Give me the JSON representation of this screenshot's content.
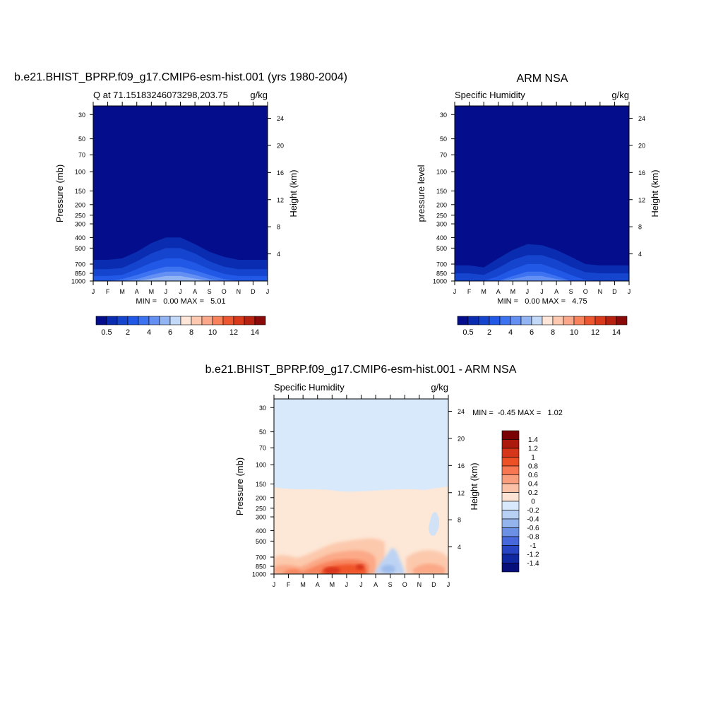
{
  "chart_data": [
    {
      "type": "contour",
      "title": "b.e21.BHIST_BPRP.f09_g17.CMIP6-esm-hist.001 (yrs 1980-2004)",
      "left_string": "Q at 71.15183246073298,203.75",
      "right_string": "g/kg",
      "ylabel": "Pressure (mb)",
      "y2label": "Height (km)",
      "x_ticks": [
        "J",
        "F",
        "M",
        "A",
        "M",
        "J",
        "J",
        "A",
        "S",
        "O",
        "N",
        "D",
        "J"
      ],
      "y_ticks": [
        30,
        50,
        70,
        100,
        150,
        200,
        250,
        300,
        400,
        500,
        700,
        850,
        1000
      ],
      "y2_ticks": [
        24,
        20,
        16,
        12,
        8,
        4
      ],
      "y_log": true,
      "ylim": [
        1000,
        25
      ],
      "stats": "MIN =   0.00 MAX =   5.01",
      "colorbar_labels": [
        "0.5",
        "2",
        "4",
        "6",
        "8",
        "10",
        "12",
        "14"
      ],
      "colorbar_levels": [
        0.5,
        1,
        2,
        3,
        4,
        5,
        6,
        7,
        8,
        9,
        10,
        11,
        12,
        13,
        14
      ],
      "contour_tops_mb": [
        [
          640,
          640,
          620,
          540,
          450,
          400,
          400,
          460,
          540,
          600,
          640,
          640,
          640
        ],
        [
          780,
          780,
          760,
          660,
          560,
          500,
          500,
          560,
          660,
          740,
          780,
          780,
          780
        ],
        [
          900,
          900,
          880,
          780,
          680,
          620,
          620,
          680,
          780,
          860,
          900,
          900,
          900
        ],
        [
          1000,
          1000,
          960,
          880,
          800,
          740,
          740,
          800,
          880,
          960,
          1000,
          1000,
          1000
        ],
        [
          1000,
          1000,
          1000,
          960,
          880,
          820,
          820,
          880,
          960,
          1000,
          1000,
          1000,
          1000
        ],
        [
          1000,
          1000,
          1000,
          1000,
          950,
          900,
          900,
          950,
          1000,
          1000,
          1000,
          1000,
          1000
        ]
      ]
    },
    {
      "type": "contour",
      "title": "ARM NSA",
      "left_string": "Specific Humidity",
      "right_string": "g/kg",
      "ylabel": "pressure level",
      "y2label": "Height (km)",
      "x_ticks": [
        "J",
        "F",
        "M",
        "A",
        "M",
        "J",
        "J",
        "A",
        "S",
        "O",
        "N",
        "D",
        "J"
      ],
      "y_ticks": [
        30,
        50,
        70,
        100,
        150,
        200,
        250,
        300,
        400,
        500,
        700,
        850,
        1000
      ],
      "y2_ticks": [
        24,
        20,
        16,
        12,
        8,
        4
      ],
      "y_log": true,
      "ylim": [
        1000,
        25
      ],
      "stats": "MIN =   0.00 MAX =   4.75",
      "colorbar_labels": [
        "0.5",
        "2",
        "4",
        "6",
        "8",
        "10",
        "12",
        "14"
      ],
      "colorbar_levels": [
        0.5,
        1,
        2,
        3,
        4,
        5,
        6,
        7,
        8,
        9,
        10,
        11,
        12,
        13,
        14
      ],
      "contour_tops_mb": [
        [
          720,
          720,
          750,
          620,
          520,
          460,
          470,
          520,
          600,
          700,
          720,
          720,
          720
        ],
        [
          850,
          850,
          880,
          760,
          640,
          580,
          580,
          640,
          740,
          830,
          850,
          850,
          850
        ],
        [
          1000,
          1000,
          1000,
          900,
          780,
          700,
          700,
          780,
          880,
          980,
          1000,
          1000,
          1000
        ],
        [
          1000,
          1000,
          1000,
          1000,
          900,
          820,
          820,
          900,
          1000,
          1000,
          1000,
          1000,
          1000
        ],
        [
          1000,
          1000,
          1000,
          1000,
          960,
          900,
          900,
          960,
          1000,
          1000,
          1000,
          1000,
          1000
        ]
      ]
    },
    {
      "type": "contour",
      "title": "b.e21.BHIST_BPRP.f09_g17.CMIP6-esm-hist.001 - ARM NSA",
      "left_string": "Specific Humidity",
      "right_string": "g/kg",
      "ylabel": "Pressure (mb)",
      "y2label": "Height (km)",
      "x_ticks": [
        "J",
        "F",
        "M",
        "A",
        "M",
        "J",
        "J",
        "A",
        "S",
        "O",
        "N",
        "D",
        "J"
      ],
      "y_ticks": [
        30,
        50,
        70,
        100,
        150,
        200,
        250,
        300,
        400,
        500,
        700,
        850,
        1000
      ],
      "y2_ticks": [
        24,
        20,
        16,
        12,
        8,
        4
      ],
      "y_log": true,
      "ylim": [
        1000,
        25
      ],
      "stats": "MIN =  -0.45 MAX =   1.02",
      "colorbar_labels": [
        "1.4",
        "1.2",
        "1",
        "0.8",
        "0.6",
        "0.4",
        "0.2",
        "0",
        "-0.2",
        "-0.4",
        "-0.6",
        "-0.8",
        "-1",
        "-1.2",
        "-1.4"
      ],
      "colorbar_levels": [
        1.4,
        1.2,
        1,
        0.8,
        0.6,
        0.4,
        0.2,
        0,
        -0.2,
        -0.4,
        -0.6,
        -0.8,
        -1,
        -1.2,
        -1.4
      ]
    }
  ]
}
